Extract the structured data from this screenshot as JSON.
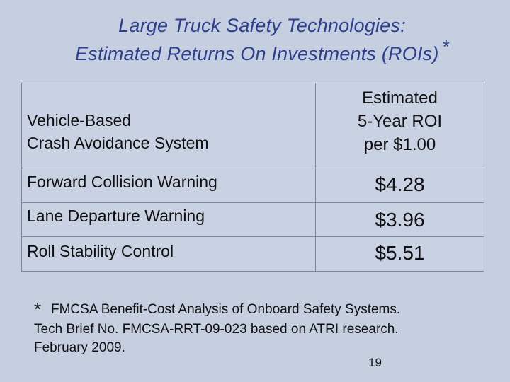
{
  "title": {
    "line1": "Large Truck Safety Technologies:",
    "line2": "Estimated Returns On Investments (ROIs)",
    "asterisk": "*"
  },
  "table": {
    "header_left_line1": "Vehicle-Based",
    "header_left_line2": "Crash Avoidance System",
    "header_right_line1": "Estimated",
    "header_right_line2": "5-Year ROI",
    "header_right_line3": "per $1.00",
    "rows": [
      {
        "system": "Forward Collision Warning",
        "roi": "$4.28"
      },
      {
        "system": "Lane Departure Warning",
        "roi": "$3.96"
      },
      {
        "system": "Roll Stability Control",
        "roi": "$5.51"
      }
    ]
  },
  "footnote": {
    "star": "*",
    "line1": "FMCSA Benefit-Cost Analysis of Onboard Safety Systems.",
    "line2": "Tech Brief No. FMCSA-RRT-09-023 based on ATRI research.",
    "line3": "February 2009."
  },
  "page_number": "19"
}
